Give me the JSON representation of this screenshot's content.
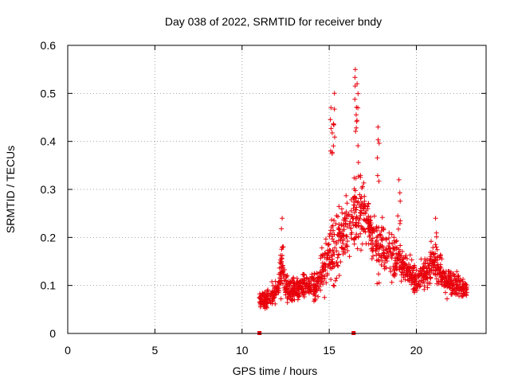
{
  "chart_data": {
    "type": "scatter",
    "title": "Day 038 of 2022, SRMTID for receiver bndy",
    "xlabel": "GPS time / hours",
    "ylabel": "SRMTID / TECUs",
    "xlim": [
      0,
      24
    ],
    "ylim": [
      0,
      0.6
    ],
    "x_ticks": [
      0,
      5,
      10,
      15,
      20
    ],
    "y_ticks": [
      0,
      0.1,
      0.2,
      0.3,
      0.4,
      0.5,
      0.6
    ],
    "x_tick_labels": [
      "0",
      "5",
      "10",
      "15",
      "20"
    ],
    "y_tick_labels": [
      "0",
      "0.1",
      "0.2",
      "0.3",
      "0.4",
      "0.5",
      "0.6"
    ],
    "grid": true,
    "marker": "+",
    "color": "#e8000b",
    "gap_markers_x": [
      11.0,
      16.4
    ],
    "series": [
      {
        "name": "SRMTID",
        "envelope_x": [
          11.0,
          11.5,
          12.0,
          12.3,
          12.6,
          13.0,
          13.5,
          14.0,
          14.5,
          15.0,
          15.3,
          15.6,
          16.0,
          16.5,
          17.0,
          17.5,
          18.0,
          18.5,
          19.0,
          19.5,
          20.0,
          20.5,
          21.0,
          21.5,
          22.0,
          22.5,
          22.9
        ],
        "envelope_center": [
          0.07,
          0.07,
          0.09,
          0.14,
          0.09,
          0.09,
          0.1,
          0.1,
          0.12,
          0.16,
          0.18,
          0.2,
          0.22,
          0.25,
          0.25,
          0.2,
          0.17,
          0.17,
          0.15,
          0.13,
          0.11,
          0.12,
          0.15,
          0.12,
          0.1,
          0.1,
          0.09
        ],
        "envelope_spread": [
          0.025,
          0.03,
          0.04,
          0.07,
          0.04,
          0.04,
          0.05,
          0.05,
          0.07,
          0.1,
          0.13,
          0.1,
          0.1,
          0.14,
          0.1,
          0.09,
          0.08,
          0.08,
          0.06,
          0.05,
          0.05,
          0.05,
          0.06,
          0.05,
          0.04,
          0.04,
          0.03
        ],
        "peaks": [
          {
            "x": 12.3,
            "y": 0.24
          },
          {
            "x": 15.1,
            "y": 0.47
          },
          {
            "x": 15.3,
            "y": 0.5
          },
          {
            "x": 16.5,
            "y": 0.55
          },
          {
            "x": 16.6,
            "y": 0.52
          },
          {
            "x": 17.8,
            "y": 0.43
          },
          {
            "x": 19.0,
            "y": 0.32
          },
          {
            "x": 21.1,
            "y": 0.24
          }
        ]
      }
    ]
  }
}
